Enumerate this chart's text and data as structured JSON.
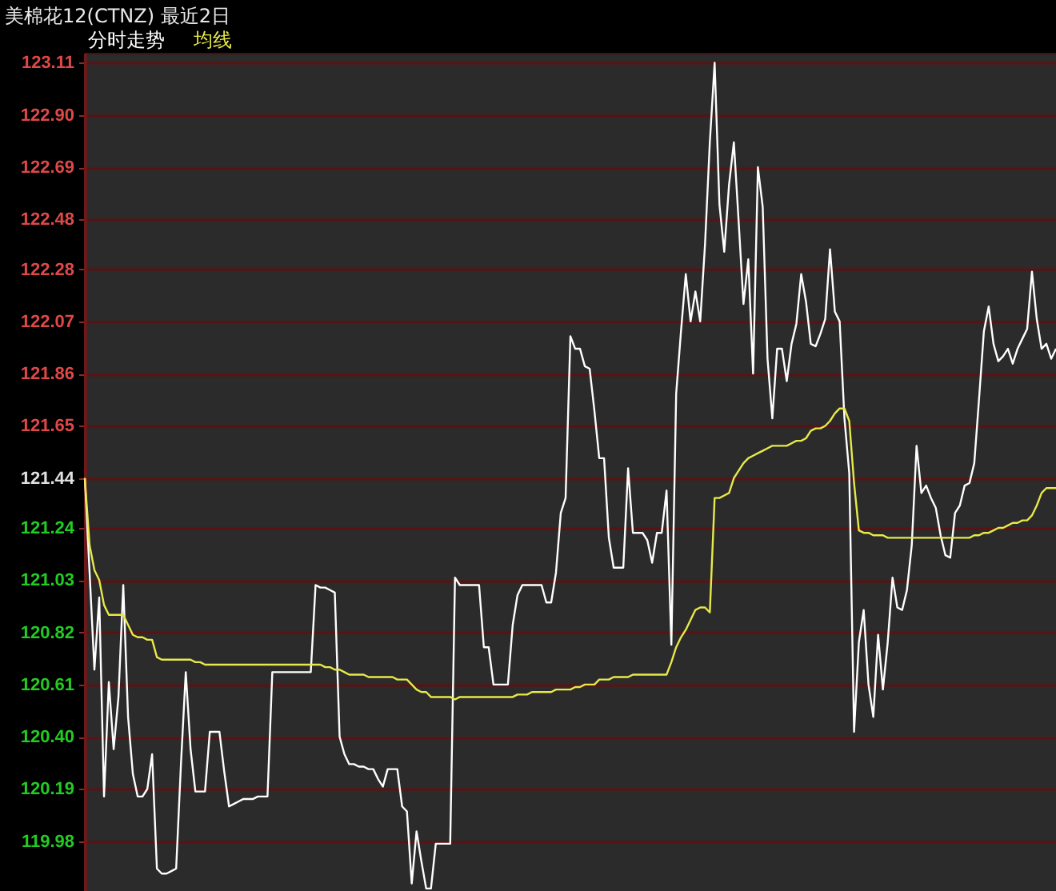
{
  "chart_data": {
    "type": "line",
    "title": "美棉花12(CTNZ) 最近2日",
    "grid": "y",
    "tick_labels": "y",
    "line_style": "solid",
    "ylim": [
      119.78,
      123.15
    ],
    "yticks": [
      123.11,
      {
        "value": 122.9,
        "label": "122.90"
      },
      122.69,
      122.48,
      122.28,
      122.07,
      121.86,
      121.65,
      121.44,
      121.24,
      121.03,
      120.82,
      120.61,
      {
        "value": 120.4,
        "label": "120.40"
      },
      120.19,
      119.98
    ],
    "categories": [
      null,
      null,
      null,
      null,
      null,
      null,
      null,
      null,
      null,
      null,
      null,
      null,
      null,
      null,
      null,
      null,
      null,
      null,
      null,
      null,
      null,
      null,
      null,
      null,
      null,
      null,
      null,
      null,
      null,
      null,
      null,
      null,
      null,
      null,
      null,
      null,
      null,
      null,
      null,
      null,
      null,
      null,
      null,
      null,
      null,
      null,
      null,
      null,
      null,
      null,
      null,
      null,
      null,
      null,
      null,
      null,
      null,
      null,
      null,
      null,
      null,
      null,
      null,
      null,
      null,
      null,
      null,
      null,
      null,
      null,
      null,
      null,
      null,
      null,
      null,
      null,
      null,
      null,
      null,
      null,
      null,
      null,
      null,
      null,
      null,
      null,
      null,
      null,
      null,
      null,
      null,
      null,
      null,
      null,
      null,
      null,
      null,
      null,
      null,
      null,
      null,
      null,
      null,
      null,
      null,
      null,
      null,
      null,
      null,
      null,
      null,
      null,
      null,
      null,
      null,
      null,
      null,
      null,
      null,
      null,
      null,
      null,
      null,
      null,
      null,
      null,
      null,
      null,
      null,
      null,
      null,
      null,
      null,
      null,
      null,
      null,
      null,
      null,
      null,
      null,
      null,
      null,
      null,
      null,
      null,
      null,
      null,
      null,
      null,
      null,
      null,
      null,
      null,
      null,
      null,
      null,
      null,
      null,
      null,
      null,
      null,
      null,
      null,
      null,
      null,
      null,
      null,
      null,
      null,
      null,
      null,
      null,
      null,
      null,
      null,
      null,
      null,
      null,
      null,
      null,
      null,
      null,
      null,
      null,
      null,
      null,
      null,
      null,
      null,
      null,
      null,
      null,
      null,
      null,
      null,
      null,
      null,
      null,
      null,
      null,
      null,
      null,
      null
    ],
    "series": [
      {
        "name": "分时走势",
        "color": "#ffffff",
        "values": [
          121.44,
          121.06,
          120.67,
          120.96,
          120.16,
          120.62,
          120.35,
          120.56,
          121.01,
          120.48,
          120.25,
          120.16,
          120.16,
          120.19,
          120.33,
          119.87,
          119.85,
          119.85,
          119.86,
          119.87,
          120.29,
          120.66,
          120.35,
          120.18,
          120.18,
          120.18,
          120.42,
          120.42,
          120.42,
          120.26,
          120.12,
          120.13,
          120.14,
          120.15,
          120.15,
          120.15,
          120.16,
          120.16,
          120.16,
          120.66,
          120.66,
          120.66,
          120.66,
          120.66,
          120.66,
          120.66,
          120.66,
          120.66,
          121.01,
          121.0,
          121.0,
          120.99,
          120.98,
          120.4,
          120.33,
          120.29,
          120.29,
          120.28,
          120.28,
          120.27,
          120.27,
          120.23,
          120.2,
          120.27,
          120.27,
          120.27,
          120.12,
          120.1,
          119.81,
          120.02,
          119.9,
          119.79,
          119.79,
          119.97,
          119.97,
          119.97,
          119.97,
          121.04,
          121.01,
          121.01,
          121.01,
          121.01,
          121.01,
          120.76,
          120.76,
          120.61,
          120.61,
          120.61,
          120.61,
          120.85,
          120.97,
          121.01,
          121.01,
          121.01,
          121.01,
          121.01,
          120.94,
          120.94,
          121.06,
          121.3,
          121.36,
          122.01,
          121.96,
          121.96,
          121.89,
          121.88,
          121.71,
          121.52,
          121.52,
          121.2,
          121.08,
          121.08,
          121.08,
          121.48,
          121.22,
          121.22,
          121.22,
          121.19,
          121.1,
          121.22,
          121.22,
          121.39,
          120.77,
          121.78,
          122.03,
          122.26,
          122.07,
          122.19,
          122.07,
          122.38,
          122.79,
          123.11,
          122.54,
          122.35,
          122.62,
          122.79,
          122.47,
          122.14,
          122.32,
          121.86,
          122.69,
          122.53,
          121.92,
          121.68,
          121.96,
          121.96,
          121.83,
          121.98,
          122.06,
          122.26,
          122.15,
          121.98,
          121.97,
          122.02,
          122.08,
          122.36,
          122.11,
          122.07,
          121.68,
          121.46,
          120.42,
          120.78,
          120.91,
          120.61,
          120.48,
          120.81,
          120.59,
          120.78,
          121.04,
          120.92,
          120.91,
          120.99,
          121.17,
          121.57,
          121.38,
          121.41,
          121.36,
          121.32,
          121.21,
          121.13,
          121.12,
          121.3,
          121.33,
          121.41,
          121.42,
          121.5,
          121.76,
          122.03,
          122.13,
          121.98,
          121.91,
          121.93,
          121.96,
          121.9,
          121.96,
          122.0,
          122.04,
          122.27,
          122.08,
          121.96,
          121.98,
          121.92,
          121.96
        ]
      },
      {
        "name": "均线",
        "color": "#e8e84a",
        "values": [
          121.44,
          121.17,
          121.07,
          121.03,
          120.93,
          120.89,
          120.89,
          120.89,
          120.89,
          120.85,
          120.81,
          120.8,
          120.8,
          120.79,
          120.79,
          120.72,
          120.71,
          120.71,
          120.71,
          120.71,
          120.71,
          120.71,
          120.71,
          120.7,
          120.7,
          120.69,
          120.69,
          120.69,
          120.69,
          120.69,
          120.69,
          120.69,
          120.69,
          120.69,
          120.69,
          120.69,
          120.69,
          120.69,
          120.69,
          120.69,
          120.69,
          120.69,
          120.69,
          120.69,
          120.69,
          120.69,
          120.69,
          120.69,
          120.69,
          120.69,
          120.68,
          120.68,
          120.67,
          120.67,
          120.66,
          120.65,
          120.65,
          120.65,
          120.65,
          120.64,
          120.64,
          120.64,
          120.64,
          120.64,
          120.64,
          120.63,
          120.63,
          120.63,
          120.61,
          120.59,
          120.58,
          120.58,
          120.56,
          120.56,
          120.56,
          120.56,
          120.56,
          120.55,
          120.56,
          120.56,
          120.56,
          120.56,
          120.56,
          120.56,
          120.56,
          120.56,
          120.56,
          120.56,
          120.56,
          120.56,
          120.57,
          120.57,
          120.57,
          120.58,
          120.58,
          120.58,
          120.58,
          120.58,
          120.59,
          120.59,
          120.59,
          120.59,
          120.6,
          120.6,
          120.61,
          120.61,
          120.61,
          120.63,
          120.63,
          120.63,
          120.64,
          120.64,
          120.64,
          120.64,
          120.65,
          120.65,
          120.65,
          120.65,
          120.65,
          120.65,
          120.65,
          120.65,
          120.7,
          120.76,
          120.8,
          120.83,
          120.87,
          120.91,
          120.92,
          120.92,
          120.9,
          121.36,
          121.36,
          121.37,
          121.38,
          121.44,
          121.47,
          121.5,
          121.52,
          121.53,
          121.54,
          121.55,
          121.56,
          121.57,
          121.57,
          121.57,
          121.57,
          121.58,
          121.59,
          121.59,
          121.6,
          121.63,
          121.64,
          121.64,
          121.65,
          121.67,
          121.7,
          121.72,
          121.72,
          121.67,
          121.42,
          121.23,
          121.22,
          121.22,
          121.21,
          121.21,
          121.21,
          121.2,
          121.2,
          121.2,
          121.2,
          121.2,
          121.2,
          121.2,
          121.2,
          121.2,
          121.2,
          121.2,
          121.2,
          121.2,
          121.2,
          121.2,
          121.2,
          121.2,
          121.2,
          121.21,
          121.21,
          121.22,
          121.22,
          121.23,
          121.24,
          121.24,
          121.25,
          121.26,
          121.26,
          121.27,
          121.27,
          121.29,
          121.33,
          121.38,
          121.4,
          121.4,
          121.4
        ]
      }
    ]
  }
}
